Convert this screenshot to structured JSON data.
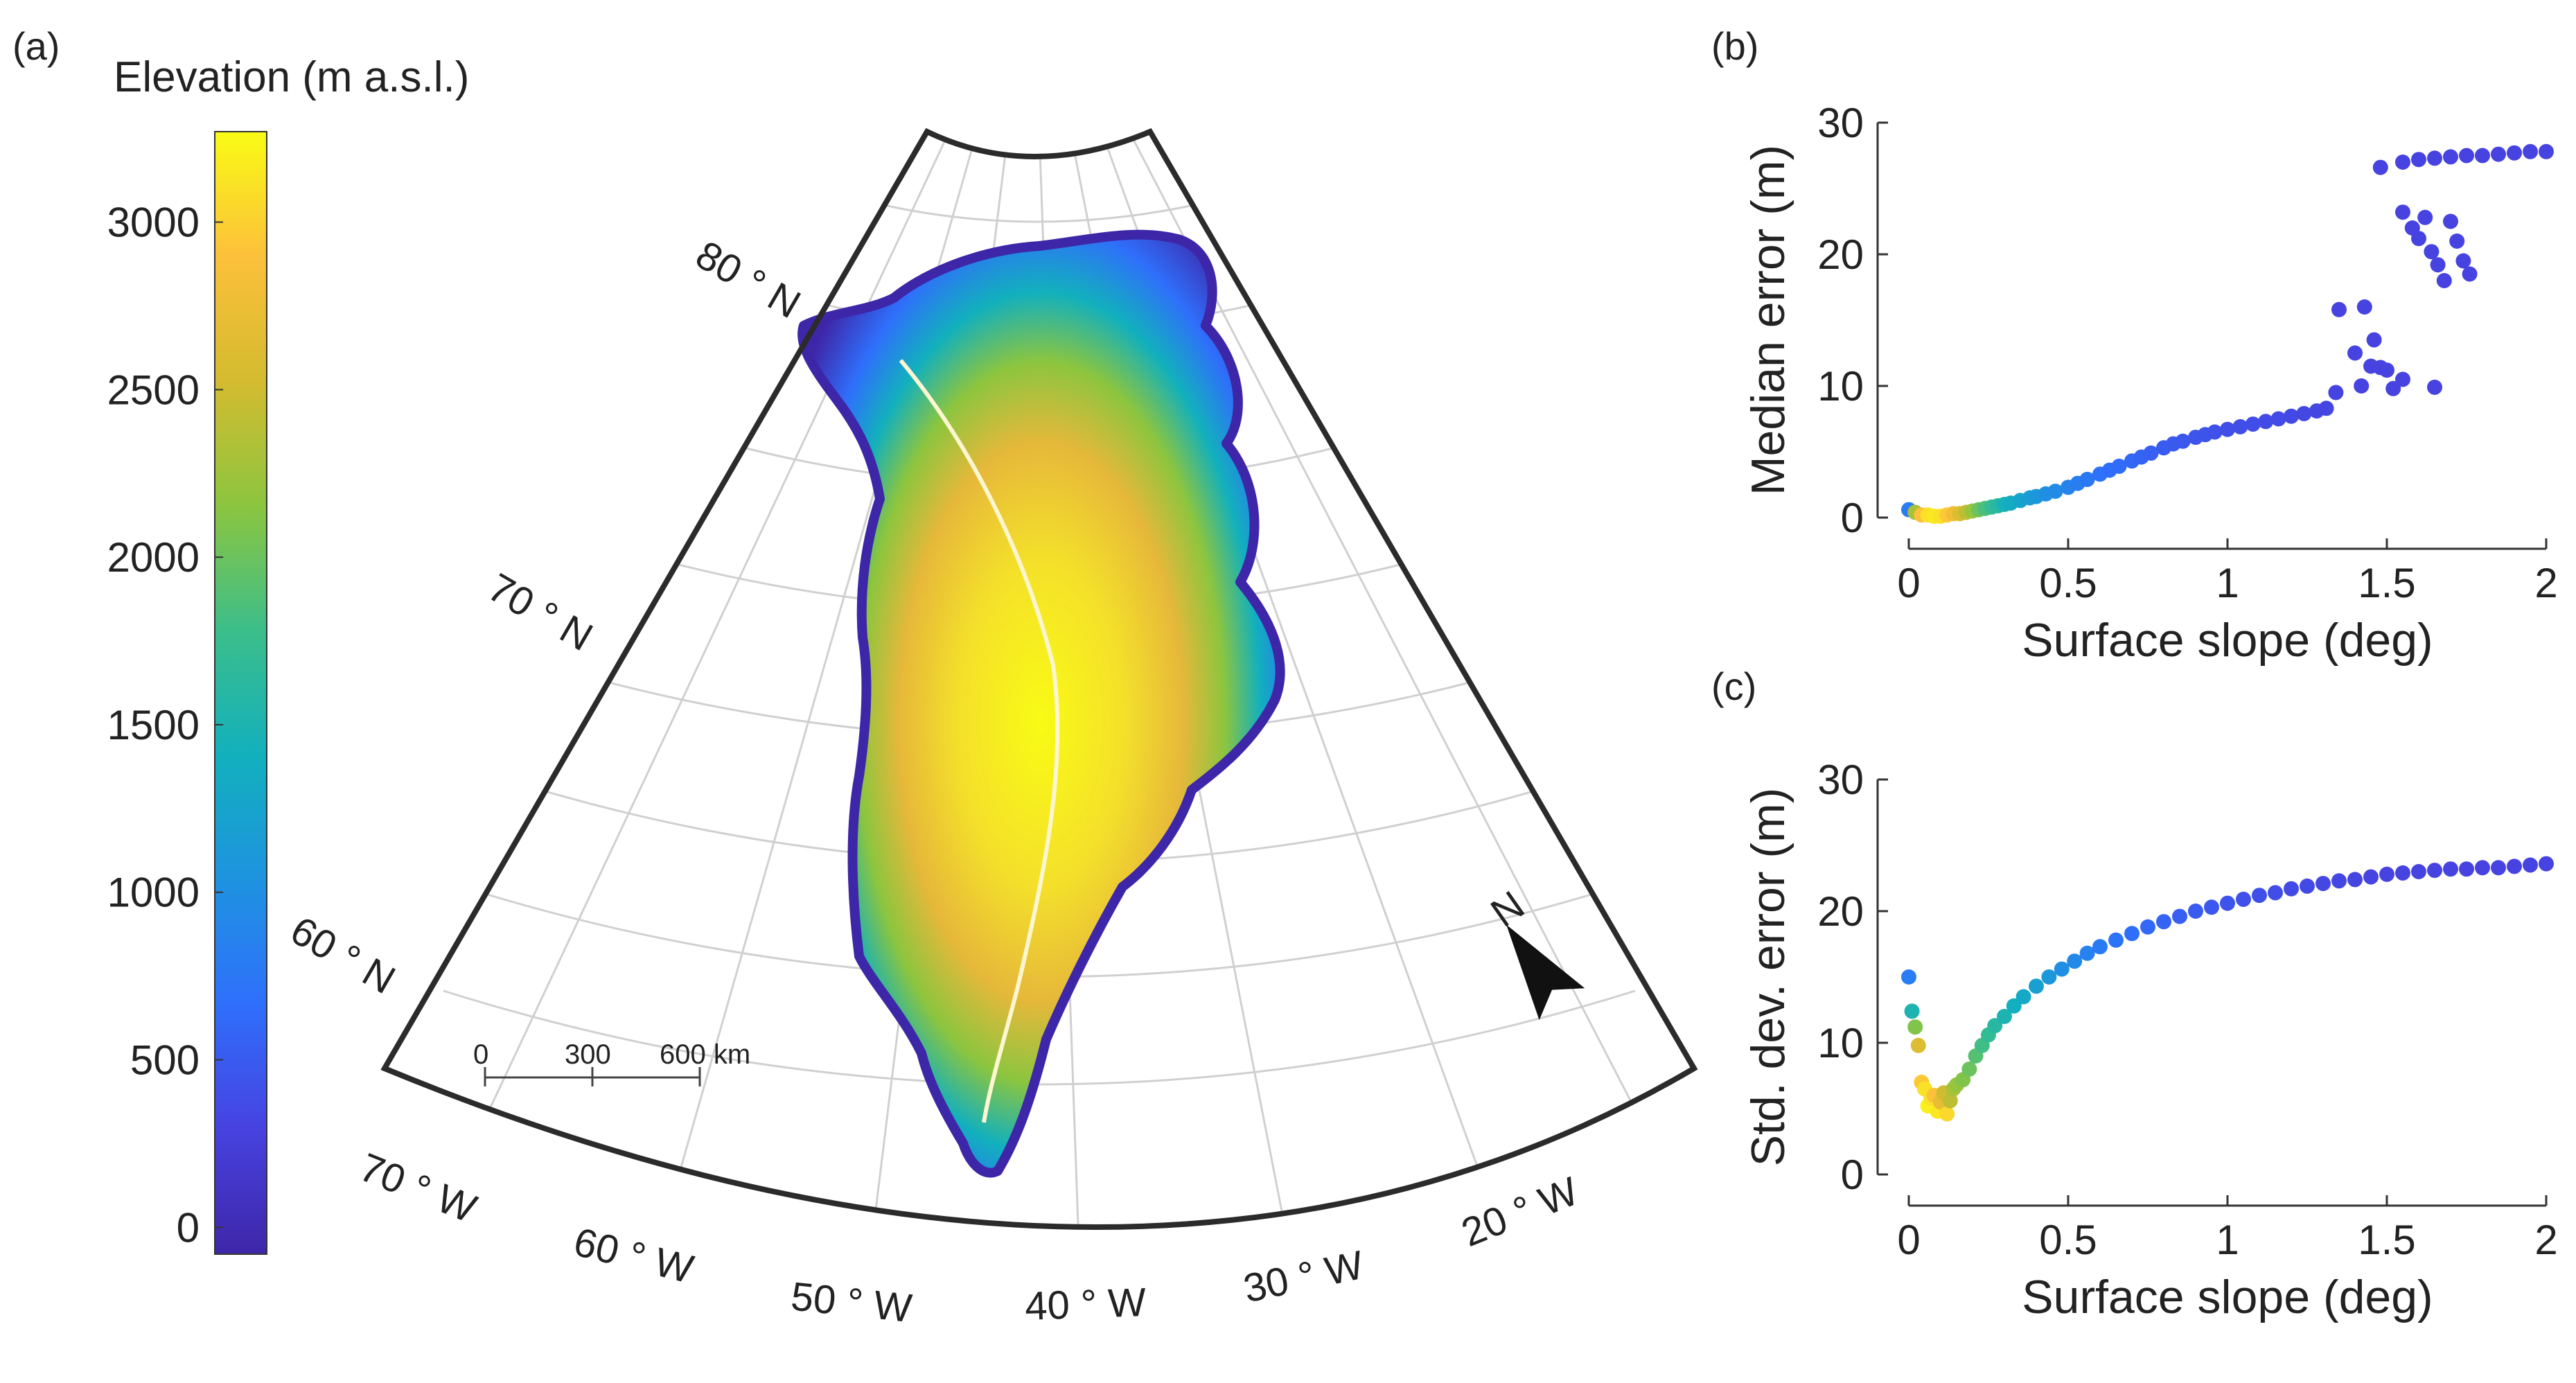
{
  "panels": {
    "a": {
      "letter": "(a)",
      "colorbar": {
        "title": "Elevation (m a.s.l.)",
        "range": [
          -80,
          3270
        ],
        "ticks": [
          "0",
          "500",
          "1000",
          "1500",
          "2000",
          "2500",
          "3000"
        ],
        "colormap": [
          "#3e26a8",
          "#4742e0",
          "#2f6ffb",
          "#1e93e0",
          "#12b0bd",
          "#3cbe8a",
          "#8cc53f",
          "#d4bb2f",
          "#fcc03a",
          "#f9fb15"
        ]
      },
      "map": {
        "lat_labels": [
          "80 ° N",
          "70 ° N",
          "60 ° N"
        ],
        "lon_labels": [
          "70 ° W",
          "60 ° W",
          "50 ° W",
          "40 ° W",
          "30 ° W",
          "20 ° W"
        ],
        "scalebar": {
          "labels": [
            "0",
            "300",
            "600 km"
          ]
        },
        "north_label": "N",
        "north-arrow-icon": "north-arrow-icon"
      }
    },
    "b": {
      "letter": "(b)"
    },
    "c": {
      "letter": "(c)"
    }
  },
  "chart_data": [
    {
      "type": "scatter",
      "panel": "b",
      "xlabel": "Surface slope (deg)",
      "ylabel": "Median error (m)",
      "xlim": [
        0,
        2
      ],
      "ylim": [
        0,
        30
      ],
      "xticks": [
        "0",
        "0.5",
        "1",
        "1.5",
        "2"
      ],
      "yticks": [
        "0",
        "10",
        "20",
        "30"
      ],
      "grid": false,
      "color_by": "elevation",
      "points": [
        [
          0.0,
          0.6,
          800
        ],
        [
          0.02,
          0.4,
          2300
        ],
        [
          0.04,
          0.2,
          2900
        ],
        [
          0.06,
          0.2,
          3100
        ],
        [
          0.08,
          0.1,
          3150
        ],
        [
          0.1,
          0.1,
          3100
        ],
        [
          0.12,
          0.2,
          2950
        ],
        [
          0.14,
          0.3,
          2800
        ],
        [
          0.16,
          0.3,
          2600
        ],
        [
          0.18,
          0.4,
          2400
        ],
        [
          0.2,
          0.5,
          2200
        ],
        [
          0.22,
          0.6,
          2000
        ],
        [
          0.24,
          0.7,
          1850
        ],
        [
          0.26,
          0.8,
          1700
        ],
        [
          0.28,
          0.9,
          1600
        ],
        [
          0.3,
          1.0,
          1450
        ],
        [
          0.32,
          1.1,
          1350
        ],
        [
          0.35,
          1.3,
          1250
        ],
        [
          0.38,
          1.5,
          1150
        ],
        [
          0.4,
          1.6,
          1100
        ],
        [
          0.43,
          1.8,
          1000
        ],
        [
          0.46,
          2.0,
          950
        ],
        [
          0.5,
          2.3,
          880
        ],
        [
          0.53,
          2.6,
          820
        ],
        [
          0.56,
          2.9,
          760
        ],
        [
          0.6,
          3.3,
          700
        ],
        [
          0.63,
          3.6,
          660
        ],
        [
          0.66,
          3.9,
          630
        ],
        [
          0.7,
          4.3,
          600
        ],
        [
          0.73,
          4.6,
          570
        ],
        [
          0.76,
          4.9,
          540
        ],
        [
          0.8,
          5.3,
          510
        ],
        [
          0.83,
          5.6,
          490
        ],
        [
          0.86,
          5.8,
          470
        ],
        [
          0.9,
          6.1,
          450
        ],
        [
          0.93,
          6.3,
          440
        ],
        [
          0.96,
          6.5,
          420
        ],
        [
          1.0,
          6.7,
          400
        ],
        [
          1.04,
          6.9,
          390
        ],
        [
          1.08,
          7.1,
          380
        ],
        [
          1.12,
          7.3,
          370
        ],
        [
          1.16,
          7.5,
          360
        ],
        [
          1.2,
          7.7,
          350
        ],
        [
          1.24,
          7.9,
          340
        ],
        [
          1.28,
          8.1,
          330
        ],
        [
          1.31,
          8.3,
          320
        ],
        [
          1.34,
          9.5,
          310
        ],
        [
          1.35,
          15.8,
          300
        ],
        [
          1.4,
          12.5,
          300
        ],
        [
          1.42,
          10.0,
          300
        ],
        [
          1.45,
          11.5,
          300
        ],
        [
          1.48,
          11.4,
          300
        ],
        [
          1.5,
          11.2,
          300
        ],
        [
          1.46,
          13.5,
          300
        ],
        [
          1.43,
          16.0,
          300
        ],
        [
          1.52,
          9.8,
          300
        ],
        [
          1.55,
          10.5,
          300
        ],
        [
          1.65,
          9.9,
          300
        ],
        [
          1.48,
          26.6,
          300
        ],
        [
          1.55,
          23.2,
          300
        ],
        [
          1.58,
          22.0,
          300
        ],
        [
          1.6,
          21.2,
          300
        ],
        [
          1.62,
          22.8,
          300
        ],
        [
          1.64,
          20.2,
          300
        ],
        [
          1.66,
          19.2,
          300
        ],
        [
          1.7,
          22.5,
          300
        ],
        [
          1.72,
          21.0,
          300
        ],
        [
          1.74,
          19.5,
          300
        ],
        [
          1.76,
          18.5,
          300
        ],
        [
          1.68,
          18.0,
          300
        ],
        [
          1.55,
          27.0,
          300
        ],
        [
          1.6,
          27.2,
          300
        ],
        [
          1.65,
          27.3,
          300
        ],
        [
          1.7,
          27.4,
          300
        ],
        [
          1.75,
          27.5,
          300
        ],
        [
          1.8,
          27.5,
          300
        ],
        [
          1.85,
          27.6,
          300
        ],
        [
          1.9,
          27.7,
          300
        ],
        [
          1.95,
          27.8,
          300
        ],
        [
          2.0,
          27.8,
          300
        ]
      ]
    },
    {
      "type": "scatter",
      "panel": "c",
      "xlabel": "Surface slope (deg)",
      "ylabel": "Std. dev. error (m)",
      "xlim": [
        0,
        2
      ],
      "ylim": [
        0,
        30
      ],
      "xticks": [
        "0",
        "0.5",
        "1",
        "1.5",
        "2"
      ],
      "yticks": [
        "0",
        "10",
        "20",
        "30"
      ],
      "grid": false,
      "color_by": "elevation",
      "points": [
        [
          0.0,
          15.0,
          800
        ],
        [
          0.01,
          12.4,
          1500
        ],
        [
          0.02,
          11.2,
          2100
        ],
        [
          0.03,
          9.8,
          2600
        ],
        [
          0.04,
          7.0,
          2950
        ],
        [
          0.05,
          6.5,
          3100
        ],
        [
          0.06,
          5.2,
          3200
        ],
        [
          0.07,
          5.8,
          3100
        ],
        [
          0.08,
          6.0,
          2900
        ],
        [
          0.09,
          4.8,
          3150
        ],
        [
          0.1,
          5.5,
          2700
        ],
        [
          0.11,
          6.2,
          2500
        ],
        [
          0.12,
          4.6,
          3050
        ],
        [
          0.13,
          5.6,
          2400
        ],
        [
          0.14,
          6.5,
          2300
        ],
        [
          0.15,
          6.8,
          2200
        ],
        [
          0.17,
          7.2,
          2100
        ],
        [
          0.19,
          8.0,
          2000
        ],
        [
          0.21,
          9.0,
          1900
        ],
        [
          0.23,
          9.8,
          1800
        ],
        [
          0.25,
          10.6,
          1700
        ],
        [
          0.27,
          11.3,
          1600
        ],
        [
          0.3,
          12.0,
          1500
        ],
        [
          0.33,
          12.8,
          1400
        ],
        [
          0.36,
          13.5,
          1300
        ],
        [
          0.4,
          14.3,
          1200
        ],
        [
          0.44,
          15.0,
          1100
        ],
        [
          0.48,
          15.6,
          1000
        ],
        [
          0.52,
          16.2,
          920
        ],
        [
          0.56,
          16.8,
          850
        ],
        [
          0.6,
          17.3,
          780
        ],
        [
          0.65,
          17.8,
          720
        ],
        [
          0.7,
          18.3,
          660
        ],
        [
          0.75,
          18.8,
          610
        ],
        [
          0.8,
          19.2,
          570
        ],
        [
          0.85,
          19.6,
          530
        ],
        [
          0.9,
          20.0,
          500
        ],
        [
          0.95,
          20.3,
          470
        ],
        [
          1.0,
          20.6,
          440
        ],
        [
          1.05,
          20.9,
          420
        ],
        [
          1.1,
          21.2,
          400
        ],
        [
          1.15,
          21.4,
          380
        ],
        [
          1.2,
          21.7,
          360
        ],
        [
          1.25,
          21.9,
          350
        ],
        [
          1.3,
          22.1,
          340
        ],
        [
          1.35,
          22.3,
          330
        ],
        [
          1.4,
          22.4,
          320
        ],
        [
          1.45,
          22.6,
          310
        ],
        [
          1.5,
          22.8,
          300
        ],
        [
          1.55,
          22.9,
          300
        ],
        [
          1.6,
          23.0,
          300
        ],
        [
          1.65,
          23.1,
          300
        ],
        [
          1.7,
          23.2,
          300
        ],
        [
          1.75,
          23.2,
          300
        ],
        [
          1.8,
          23.3,
          300
        ],
        [
          1.85,
          23.3,
          300
        ],
        [
          1.9,
          23.4,
          300
        ],
        [
          1.95,
          23.5,
          300
        ],
        [
          2.0,
          23.6,
          300
        ]
      ]
    }
  ]
}
